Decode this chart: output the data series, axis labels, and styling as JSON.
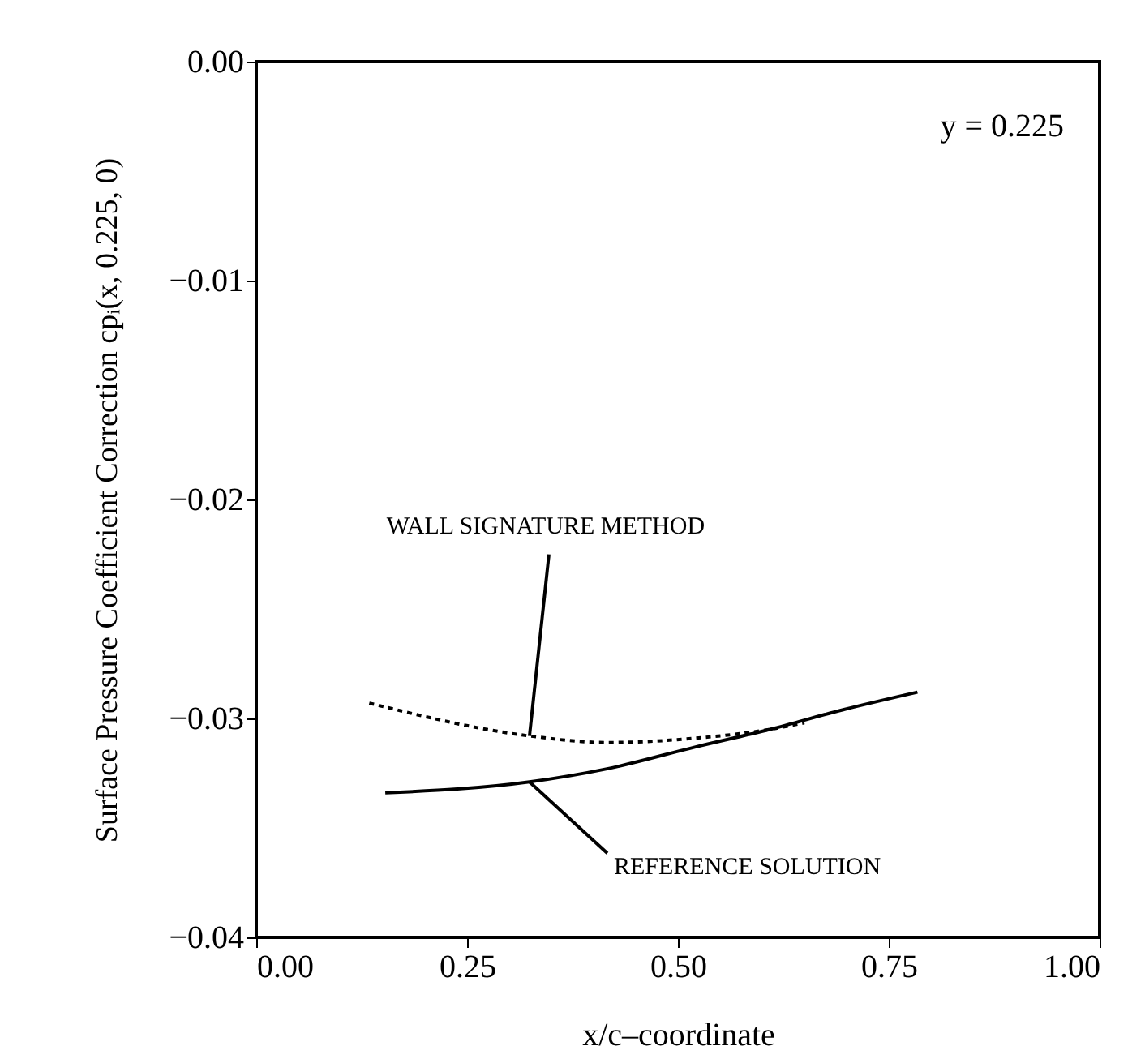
{
  "chart_data": {
    "type": "line",
    "xlabel": "x/c–coordinate",
    "ylabel": "Surface Pressure Coefficient Correction cpᵢ(x, 0.225, 0)",
    "annotations": [
      "y = 0.225"
    ],
    "xlim": [
      0,
      1
    ],
    "ylim": [
      -0.04,
      0
    ],
    "xticks": [
      {
        "value": 0,
        "label": "0.00"
      },
      {
        "value": 0.25,
        "label": "0.25"
      },
      {
        "value": 0.5,
        "label": "0.50"
      },
      {
        "value": 0.75,
        "label": "0.75"
      },
      {
        "value": 1,
        "label": "1.00"
      }
    ],
    "yticks": [
      {
        "value": -0.04,
        "label": "−0.04"
      },
      {
        "value": -0.03,
        "label": "−0.03"
      },
      {
        "value": -0.02,
        "label": "−0.02"
      },
      {
        "value": -0.01,
        "label": "−0.01"
      },
      {
        "value": 0,
        "label": "0.00"
      }
    ],
    "series": [
      {
        "name": "WALL SIGNATURE METHOD",
        "color": "#000000",
        "line_style": "dotted",
        "x": [
          0.134,
          0.324,
          0.416,
          0.521,
          0.609,
          0.65
        ],
        "values": [
          -0.0293,
          -0.0308,
          -0.0311,
          -0.0309,
          -0.0305,
          -0.0302
        ]
      },
      {
        "name": "REFERENCE SOLUTION",
        "color": "#000000",
        "line_style": "solid",
        "x": [
          0.153,
          0.324,
          0.416,
          0.521,
          0.609,
          0.696,
          0.784
        ],
        "values": [
          -0.0334,
          -0.0329,
          -0.0323,
          -0.0313,
          -0.0305,
          -0.0296,
          -0.0288
        ]
      }
    ]
  }
}
